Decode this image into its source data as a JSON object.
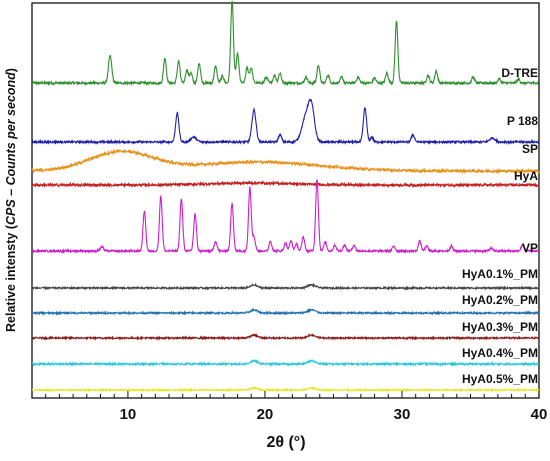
{
  "chart_data": {
    "type": "line",
    "xlabel": "2θ (°)",
    "ylabel_prefix": "Relative intensty (",
    "ylabel_italic": "CPS – Counts per second",
    "ylabel_suffix": ")",
    "xlim": [
      3,
      40
    ],
    "x_ticks": [
      10,
      20,
      30,
      40
    ],
    "x_tick_labels": [
      "10",
      "20",
      "30",
      "40"
    ],
    "y_tick_labels": false,
    "grid": false,
    "series": [
      {
        "name": "D-TRE",
        "color": "#2f8f2f",
        "baseline_level": 9,
        "baseline_noise": 1.2,
        "peaks": [
          [
            8.7,
            27,
            0.12
          ],
          [
            12.7,
            25,
            0.1
          ],
          [
            13.7,
            22,
            0.1
          ],
          [
            14.3,
            13,
            0.1
          ],
          [
            14.6,
            10,
            0.1
          ],
          [
            15.2,
            20,
            0.1
          ],
          [
            16.4,
            17,
            0.1
          ],
          [
            16.9,
            7,
            0.1
          ],
          [
            17.6,
            82,
            0.1
          ],
          [
            18.0,
            29,
            0.1
          ],
          [
            18.7,
            15,
            0.1
          ],
          [
            19.0,
            15,
            0.1
          ],
          [
            20.1,
            6,
            0.1
          ],
          [
            20.7,
            8,
            0.1
          ],
          [
            21.1,
            10,
            0.1
          ],
          [
            23.0,
            6,
            0.1
          ],
          [
            23.9,
            18,
            0.1
          ],
          [
            24.6,
            8,
            0.1
          ],
          [
            25.6,
            6,
            0.1
          ],
          [
            26.8,
            6,
            0.1
          ],
          [
            28.0,
            5,
            0.1
          ],
          [
            28.9,
            10,
            0.1
          ],
          [
            29.6,
            62,
            0.1
          ],
          [
            31.9,
            8,
            0.1
          ],
          [
            32.5,
            12,
            0.1
          ],
          [
            35.2,
            6,
            0.1
          ],
          [
            37.1,
            4,
            0.1
          ],
          [
            38.5,
            4,
            0.1
          ]
        ]
      },
      {
        "name": "P 188",
        "color": "#1f1fa8",
        "baseline_level": 8,
        "baseline_noise": 1.0,
        "peaks": [
          [
            13.6,
            29,
            0.12
          ],
          [
            14.8,
            5,
            0.2
          ],
          [
            19.2,
            32,
            0.15
          ],
          [
            21.1,
            7,
            0.12
          ],
          [
            23.0,
            25,
            0.3
          ],
          [
            23.4,
            30,
            0.22
          ],
          [
            27.3,
            34,
            0.12
          ],
          [
            27.8,
            5,
            0.1
          ],
          [
            30.8,
            7,
            0.12
          ],
          [
            36.6,
            4,
            0.2
          ]
        ]
      },
      {
        "name": "SP",
        "color": "#e8901a",
        "baseline_level": 4,
        "baseline_noise": 1.3,
        "peaks": [
          [
            9.5,
            19,
            2.3
          ],
          [
            19.5,
            9,
            4.5
          ]
        ]
      },
      {
        "name": "HyA",
        "color": "#c21f1f",
        "baseline_level": 8,
        "baseline_noise": 1.2,
        "peaks": [
          [
            19.0,
            2,
            3.0
          ]
        ]
      },
      {
        "name": "VP",
        "color": "#cc1fcc",
        "baseline_level": 12,
        "baseline_noise": 1.0,
        "peaks": [
          [
            8.1,
            4,
            0.12
          ],
          [
            11.2,
            40,
            0.1
          ],
          [
            12.4,
            55,
            0.1
          ],
          [
            13.9,
            52,
            0.1
          ],
          [
            14.9,
            37,
            0.1
          ],
          [
            16.4,
            10,
            0.1
          ],
          [
            17.6,
            48,
            0.1
          ],
          [
            18.9,
            64,
            0.1
          ],
          [
            19.2,
            14,
            0.1
          ],
          [
            20.4,
            10,
            0.1
          ],
          [
            21.5,
            8,
            0.1
          ],
          [
            21.9,
            10,
            0.1
          ],
          [
            22.3,
            7,
            0.1
          ],
          [
            22.8,
            14,
            0.1
          ],
          [
            23.8,
            72,
            0.1
          ],
          [
            24.4,
            9,
            0.1
          ],
          [
            25.1,
            6,
            0.1
          ],
          [
            25.8,
            6,
            0.1
          ],
          [
            26.5,
            6,
            0.1
          ],
          [
            29.4,
            5,
            0.1
          ],
          [
            31.3,
            10,
            0.1
          ],
          [
            31.8,
            5,
            0.1
          ],
          [
            33.6,
            5,
            0.1
          ],
          [
            36.5,
            3,
            0.1
          ],
          [
            38.8,
            6,
            0.1
          ]
        ]
      },
      {
        "name": "HyA0.1%_PM",
        "color": "#444444",
        "baseline_level": 5,
        "baseline_noise": 0.8,
        "peaks": [
          [
            19.2,
            3,
            0.25
          ],
          [
            23.4,
            3,
            0.3
          ]
        ]
      },
      {
        "name": "HyA0.2%_PM",
        "color": "#1f6fb0",
        "baseline_level": 5,
        "baseline_noise": 0.8,
        "peaks": [
          [
            19.2,
            3,
            0.25
          ],
          [
            23.4,
            3,
            0.3
          ]
        ]
      },
      {
        "name": "HyA0.3%_PM",
        "color": "#8a1c1c",
        "baseline_level": 5,
        "baseline_noise": 0.8,
        "peaks": [
          [
            19.2,
            3,
            0.25
          ],
          [
            23.4,
            3,
            0.3
          ]
        ]
      },
      {
        "name": "HyA0.4%_PM",
        "color": "#29c8d8",
        "baseline_level": 5,
        "baseline_noise": 0.9,
        "peaks": [
          [
            19.2,
            3,
            0.25
          ],
          [
            23.4,
            3,
            0.3
          ]
        ]
      },
      {
        "name": "HyA0.5%_PM",
        "color": "#e6e62a",
        "baseline_level": 5,
        "baseline_noise": 0.7,
        "peaks": [
          [
            19.2,
            2,
            0.25
          ],
          [
            23.4,
            2,
            0.3
          ]
        ]
      }
    ]
  }
}
